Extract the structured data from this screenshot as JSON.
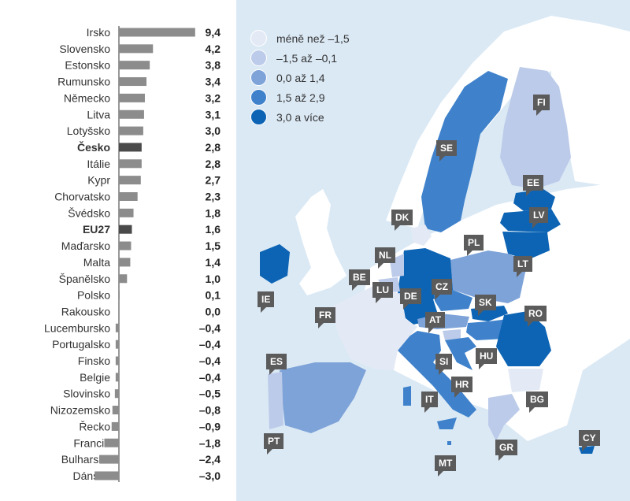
{
  "chart_data": {
    "type": "bar",
    "orientation": "horizontal",
    "categories": [
      "Irsko",
      "Slovensko",
      "Estonsko",
      "Rumunsko",
      "Německo",
      "Litva",
      "Lotyšsko",
      "Česko",
      "Itálie",
      "Kypr",
      "Chorvatsko",
      "Švédsko",
      "EU27",
      "Maďarsko",
      "Malta",
      "Španělsko",
      "Polsko",
      "Rakousko",
      "Lucembursko",
      "Portugalsko",
      "Finsko",
      "Belgie",
      "Slovinsko",
      "Nizozemsko",
      "Řecko",
      "Francie",
      "Bulharsko",
      "Dánsko"
    ],
    "values": [
      9.4,
      4.2,
      3.8,
      3.4,
      3.2,
      3.1,
      3.0,
      2.8,
      2.8,
      2.7,
      2.3,
      1.8,
      1.6,
      1.5,
      1.4,
      1.0,
      0.1,
      0.0,
      -0.4,
      -0.4,
      -0.4,
      -0.4,
      -0.5,
      -0.8,
      -0.9,
      -1.8,
      -2.4,
      -3.0
    ],
    "value_labels": [
      "9,4",
      "4,2",
      "3,8",
      "3,4",
      "3,2",
      "3,1",
      "3,0",
      "2,8",
      "2,8",
      "2,7",
      "2,3",
      "1,8",
      "1,6",
      "1,5",
      "1,4",
      "1,0",
      "0,1",
      "0,0",
      "–0,4",
      "–0,4",
      "–0,4",
      "–0,4",
      "–0,5",
      "–0,8",
      "–0,9",
      "–1,8",
      "–2,4",
      "–3,0"
    ],
    "highlighted": [
      "Česko",
      "EU27"
    ],
    "colors": {
      "bar": "#8c8c8c",
      "highlight": "#4a4a4a",
      "axis": "#333333"
    }
  },
  "legend": {
    "items": [
      {
        "label": "méně než –1,5",
        "color": "#e4eaf5"
      },
      {
        "label": "–1,5 až –0,1",
        "color": "#bccbe9"
      },
      {
        "label": "0,0 až 1,4",
        "color": "#7ea3d8"
      },
      {
        "label": "1,5 až 2,9",
        "color": "#3f82cb"
      },
      {
        "label": "3,0 a více",
        "color": "#0d64b4"
      }
    ]
  },
  "map": {
    "background": "#dbe9f5",
    "labels": [
      "FI",
      "SE",
      "EE",
      "LV",
      "DK",
      "LT",
      "PL",
      "NL",
      "BE",
      "IE",
      "LU",
      "DE",
      "CZ",
      "SK",
      "FR",
      "AT",
      "RO",
      "SI",
      "HU",
      "ES",
      "HR",
      "IT",
      "BG",
      "PT",
      "GR",
      "MT",
      "CY"
    ]
  }
}
